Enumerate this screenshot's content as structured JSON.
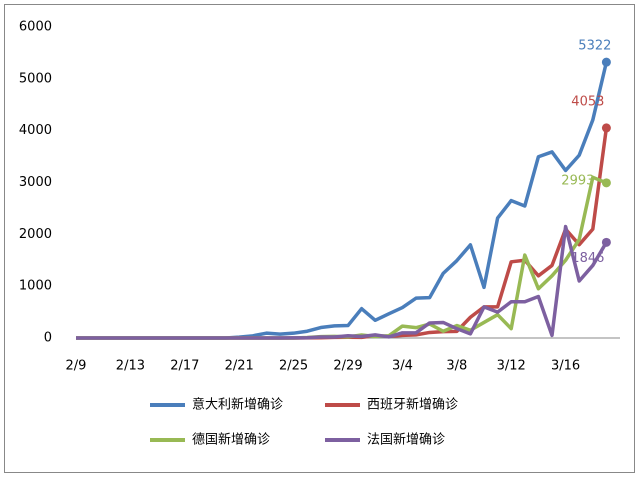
{
  "chart_data": {
    "type": "line",
    "categories": [
      "2/9",
      null,
      null,
      null,
      "2/13",
      null,
      null,
      null,
      "2/17",
      null,
      null,
      null,
      "2/21",
      null,
      null,
      null,
      "2/25",
      null,
      null,
      null,
      "2/29",
      null,
      null,
      null,
      "3/4",
      null,
      null,
      null,
      "3/8",
      null,
      null,
      null,
      "3/12",
      null,
      null,
      null,
      "3/16",
      null,
      null,
      null
    ],
    "ylim": [
      0,
      6000
    ],
    "yticks": [
      0,
      1000,
      2000,
      3000,
      4000,
      5000,
      6000
    ],
    "grid": false,
    "legend": "bottom",
    "series": [
      {
        "name": "意大利新增确诊",
        "color": "#4a7ebb",
        "values": [
          0,
          0,
          0,
          0,
          0,
          0,
          0,
          0,
          0,
          0,
          0,
          0,
          17,
          42,
          93,
          74,
          93,
          131,
          202,
          233,
          240,
          566,
          342,
          466,
          587,
          769,
          778,
          1247,
          1492,
          1797,
          977,
          2313,
          2651,
          2547,
          3497,
          3590,
          3233,
          3526,
          4207,
          5322
        ]
      },
      {
        "name": "西班牙新增确诊",
        "color": "#be4b48",
        "values": [
          0,
          0,
          0,
          0,
          0,
          0,
          0,
          0,
          0,
          0,
          0,
          0,
          0,
          0,
          0,
          0,
          0,
          2,
          6,
          13,
          15,
          13,
          45,
          31,
          51,
          60,
          107,
          124,
          128,
          400,
          600,
          600,
          1470,
          1500,
          1200,
          1400,
          2100,
          1800,
          2100,
          4053
        ]
      },
      {
        "name": "德国新增确诊",
        "color": "#98b954",
        "values": [
          0,
          0,
          0,
          0,
          0,
          0,
          0,
          0,
          0,
          0,
          0,
          0,
          0,
          0,
          0,
          0,
          1,
          10,
          26,
          31,
          21,
          57,
          29,
          43,
          230,
          200,
          270,
          130,
          240,
          150,
          300,
          450,
          180,
          1600,
          950,
          1200,
          1500,
          1900,
          3100,
          2993
        ]
      },
      {
        "name": "法国新增确诊",
        "color": "#7d60a0",
        "values": [
          0,
          0,
          0,
          0,
          0,
          0,
          0,
          0,
          0,
          0,
          0,
          0,
          0,
          0,
          0,
          0,
          2,
          4,
          20,
          19,
          43,
          30,
          61,
          21,
          100,
          100,
          290,
          300,
          180,
          80,
          600,
          500,
          700,
          700,
          800,
          50,
          2150,
          1100,
          1400,
          1846
        ]
      }
    ]
  }
}
